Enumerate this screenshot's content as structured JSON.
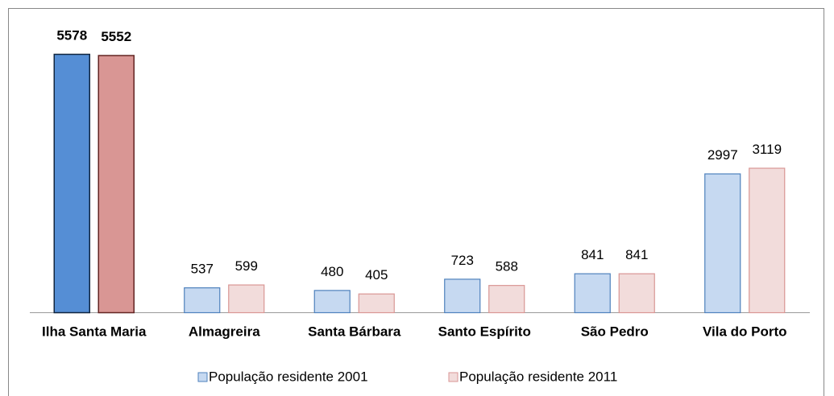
{
  "chart_data": {
    "type": "bar",
    "categories": [
      "Ilha Santa Maria",
      "Almagreira",
      "Santa Bárbara",
      "Santo Espírito",
      "São Pedro",
      "Vila do Porto"
    ],
    "series": [
      {
        "name": "População residente 2001",
        "color": "#c6d9f1",
        "edge": "#4f81bd",
        "colors": [
          "#558ed5",
          "#c6d9f1",
          "#c6d9f1",
          "#c6d9f1",
          "#c6d9f1",
          "#c6d9f1"
        ],
        "edges": [
          "#10253f",
          "#4f81bd",
          "#4f81bd",
          "#4f81bd",
          "#4f81bd",
          "#4f81bd"
        ],
        "values": [
          5578,
          537,
          480,
          723,
          841,
          2997
        ]
      },
      {
        "name": "População residente 2011",
        "color": "#f2dcdb",
        "edge": "#d99694",
        "colors": [
          "#d99694",
          "#f2dcdb",
          "#f2dcdb",
          "#f2dcdb",
          "#f2dcdb",
          "#f2dcdb"
        ],
        "edges": [
          "#632523",
          "#d99694",
          "#d99694",
          "#d99694",
          "#d99694",
          "#d99694"
        ],
        "values": [
          5552,
          599,
          405,
          588,
          841,
          3119
        ]
      }
    ],
    "legend": "bottom"
  }
}
